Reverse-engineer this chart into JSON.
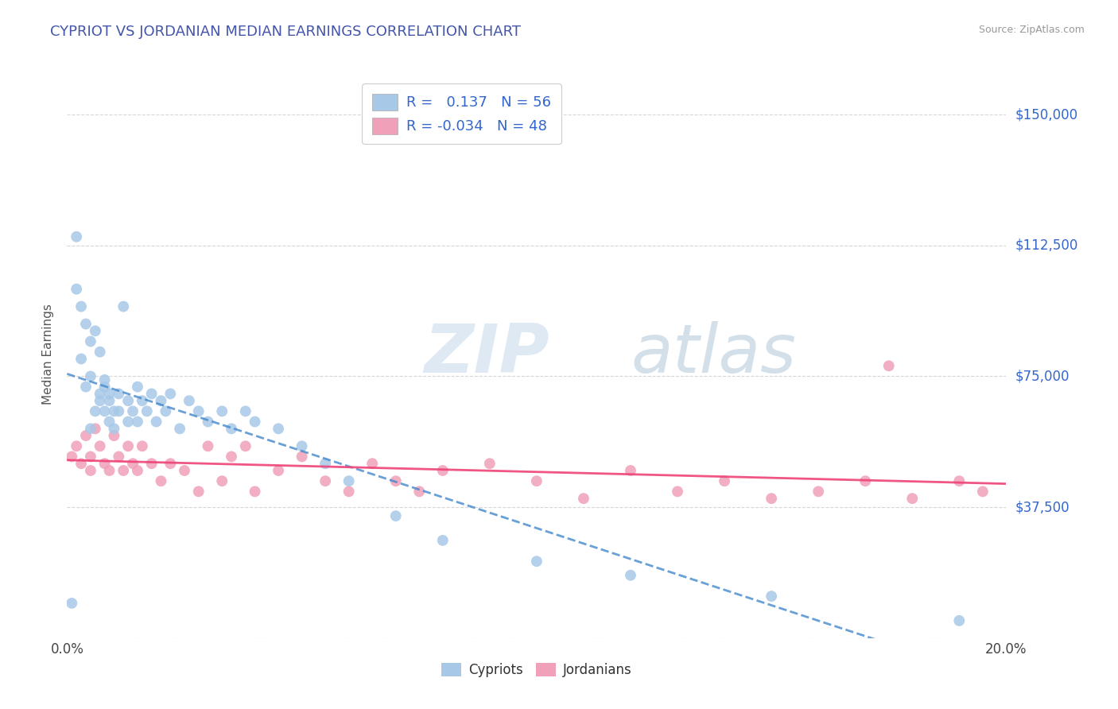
{
  "title": "CYPRIOT VS JORDANIAN MEDIAN EARNINGS CORRELATION CHART",
  "source": "Source: ZipAtlas.com",
  "ylabel": "Median Earnings",
  "yticks": [
    0,
    37500,
    75000,
    112500,
    150000
  ],
  "ytick_labels": [
    "",
    "$37,500",
    "$75,000",
    "$112,500",
    "$150,000"
  ],
  "xlim": [
    0.0,
    0.2
  ],
  "ylim": [
    0,
    162500
  ],
  "cypriot_color": "#a8c8e8",
  "jordanian_color": "#f0a0b8",
  "cypriot_line_color": "#4488cc",
  "jordanian_line_color": "#ee4477",
  "cypriot_R": 0.137,
  "cypriot_N": 56,
  "jordanian_R": -0.034,
  "jordanian_N": 48,
  "background_color": "#ffffff",
  "grid_color": "#cccccc",
  "title_color": "#4455aa",
  "axis_label_color": "#3366cc",
  "legend_text_color": "#3366cc",
  "watermark_zip_color": "#c8d8e8",
  "watermark_atlas_color": "#a8c0d8",
  "cypriot_x": [
    0.001,
    0.002,
    0.002,
    0.003,
    0.003,
    0.004,
    0.004,
    0.005,
    0.005,
    0.005,
    0.006,
    0.006,
    0.007,
    0.007,
    0.007,
    0.008,
    0.008,
    0.008,
    0.009,
    0.009,
    0.009,
    0.01,
    0.01,
    0.011,
    0.011,
    0.012,
    0.013,
    0.013,
    0.014,
    0.015,
    0.015,
    0.016,
    0.017,
    0.018,
    0.019,
    0.02,
    0.021,
    0.022,
    0.024,
    0.026,
    0.028,
    0.03,
    0.033,
    0.035,
    0.038,
    0.04,
    0.045,
    0.05,
    0.055,
    0.06,
    0.07,
    0.08,
    0.1,
    0.12,
    0.15,
    0.19
  ],
  "cypriot_y": [
    10000,
    115000,
    100000,
    95000,
    80000,
    90000,
    72000,
    85000,
    75000,
    60000,
    88000,
    65000,
    70000,
    68000,
    82000,
    72000,
    65000,
    74000,
    68000,
    62000,
    70000,
    65000,
    60000,
    70000,
    65000,
    95000,
    62000,
    68000,
    65000,
    62000,
    72000,
    68000,
    65000,
    70000,
    62000,
    68000,
    65000,
    70000,
    60000,
    68000,
    65000,
    62000,
    65000,
    60000,
    65000,
    62000,
    60000,
    55000,
    50000,
    45000,
    35000,
    28000,
    22000,
    18000,
    12000,
    5000
  ],
  "jordanian_x": [
    0.001,
    0.002,
    0.003,
    0.004,
    0.005,
    0.005,
    0.006,
    0.007,
    0.008,
    0.009,
    0.01,
    0.011,
    0.012,
    0.013,
    0.014,
    0.015,
    0.016,
    0.018,
    0.02,
    0.022,
    0.025,
    0.028,
    0.03,
    0.033,
    0.035,
    0.038,
    0.04,
    0.045,
    0.05,
    0.055,
    0.06,
    0.065,
    0.07,
    0.075,
    0.08,
    0.09,
    0.1,
    0.11,
    0.12,
    0.13,
    0.14,
    0.15,
    0.16,
    0.17,
    0.175,
    0.18,
    0.19,
    0.195
  ],
  "jordanian_y": [
    52000,
    55000,
    50000,
    58000,
    52000,
    48000,
    60000,
    55000,
    50000,
    48000,
    58000,
    52000,
    48000,
    55000,
    50000,
    48000,
    55000,
    50000,
    45000,
    50000,
    48000,
    42000,
    55000,
    45000,
    52000,
    55000,
    42000,
    48000,
    52000,
    45000,
    42000,
    50000,
    45000,
    42000,
    48000,
    50000,
    45000,
    40000,
    48000,
    42000,
    45000,
    40000,
    42000,
    45000,
    78000,
    40000,
    45000,
    42000
  ]
}
